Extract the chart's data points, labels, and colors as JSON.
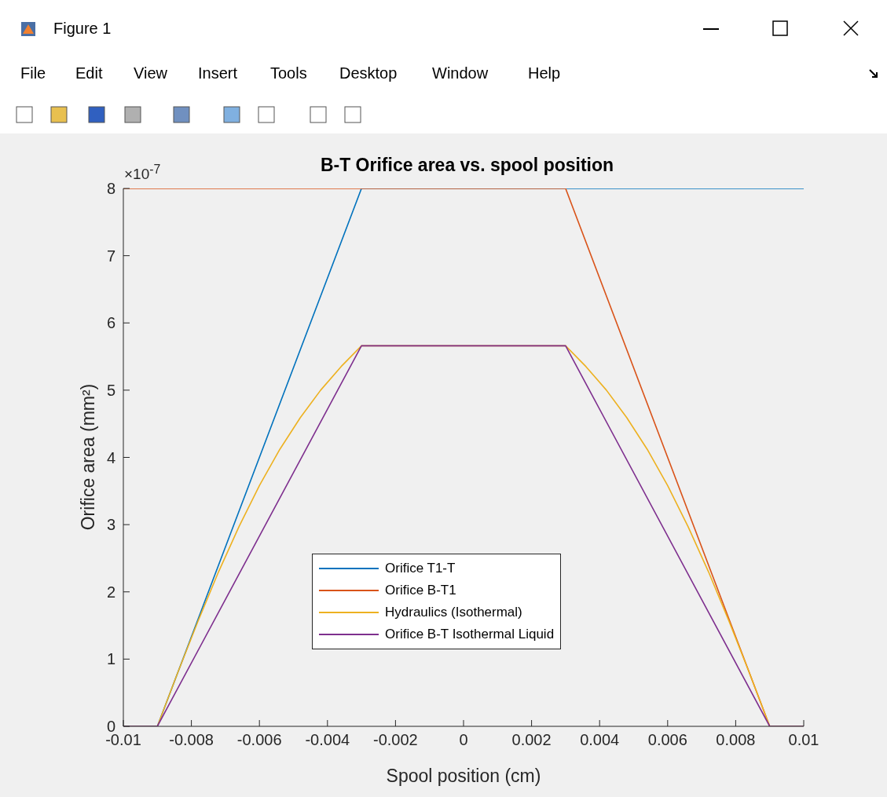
{
  "chart_data": {
    "type": "line",
    "title": "B-T Orifice area vs. spool position",
    "xlabel": "Spool position (cm)",
    "ylabel": "Orifice area (mm²)",
    "xlim": [
      -0.01,
      0.01
    ],
    "xticks": [
      -0.01,
      -0.008,
      -0.006,
      -0.004,
      -0.002,
      0,
      0.002,
      0.004,
      0.006,
      0.008,
      0.01
    ],
    "ylim": [
      0,
      8
    ],
    "yticks": [
      0,
      1,
      2,
      3,
      4,
      5,
      6,
      7,
      8
    ],
    "grid": false,
    "legend": "bottom",
    "marker": "none",
    "line_style": "solid",
    "annotations": [
      "×10$^{-7}$",
      "Figure 1",
      "File",
      "Edit",
      "View",
      "Insert",
      "Tools",
      "Desktop",
      "Window",
      "Help"
    ],
    "series": [
      {
        "name": "Orifice T1-T",
        "color": "#0072bd",
        "x": [
          -0.01,
          -0.009,
          -0.003,
          0.01
        ],
        "values": [
          0,
          0,
          8,
          8
        ]
      },
      {
        "name": "Orifice B-T1",
        "color": "#d95319",
        "x": [
          -0.01,
          0.003,
          0.009,
          0.01
        ],
        "values": [
          8,
          8,
          0,
          0
        ]
      },
      {
        "name": "Hydraulics (Isothermal)",
        "color": "#edb120",
        "x": [
          -0.01,
          -0.009,
          -0.0084,
          -0.0078,
          -0.0072,
          -0.0066,
          -0.006,
          -0.0054,
          -0.0048,
          -0.0042,
          -0.0036,
          -0.003,
          0.003,
          0.0036,
          0.0042,
          0.0048,
          0.0054,
          0.006,
          0.0066,
          0.0072,
          0.0078,
          0.0084,
          0.009,
          0.01
        ],
        "values": [
          0,
          0,
          0.8,
          1.57,
          2.3,
          2.97,
          3.58,
          4.12,
          4.59,
          5,
          5.35,
          5.66,
          5.66,
          5.35,
          5,
          4.59,
          4.12,
          3.58,
          2.97,
          2.3,
          1.57,
          0.8,
          0,
          0
        ]
      },
      {
        "name": "Orifice B-T Isothermal Liquid",
        "color": "#7e2f8e",
        "x": [
          -0.01,
          -0.009,
          -0.003,
          0.003,
          0.009,
          0.01
        ],
        "values": [
          0,
          0,
          5.66,
          5.66,
          0,
          0
        ]
      }
    ]
  }
}
